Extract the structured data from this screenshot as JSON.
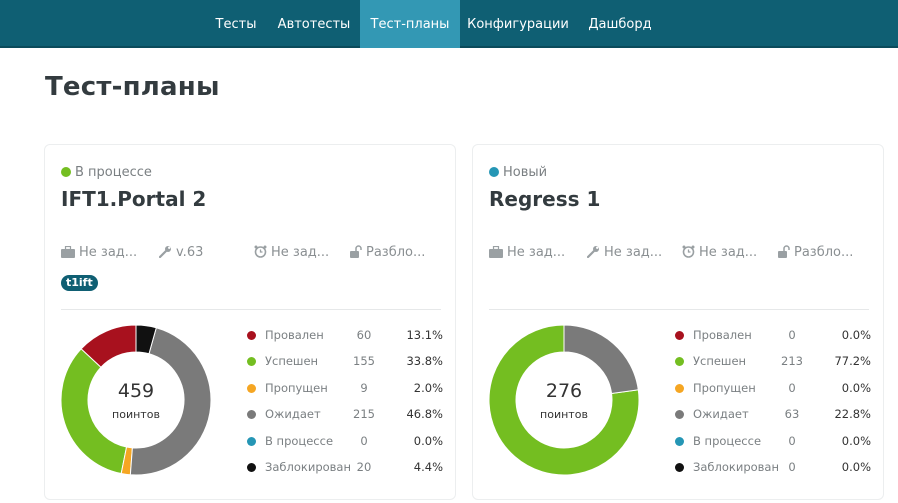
{
  "nav": {
    "items": [
      {
        "label": "Тесты"
      },
      {
        "label": "Автотесты"
      },
      {
        "label": "Тест-планы"
      },
      {
        "label": "Конфигурации"
      },
      {
        "label": "Дашборд"
      }
    ],
    "active_index": 2
  },
  "page": {
    "title": "Тест-планы"
  },
  "colors": {
    "failed": "#a8111e",
    "passed": "#74be21",
    "skipped": "#f5a623",
    "pending": "#7a7a7a",
    "in_progress": "#2596b5",
    "blocked": "#111111"
  },
  "plans": [
    {
      "status": {
        "label": "В процессе",
        "color": "#74be21"
      },
      "name": "IFT1.Portal 2",
      "meta": {
        "date": "Не зад...",
        "build": "v.63",
        "time": "Не зад...",
        "lock": "Разбло..."
      },
      "tag": "t1ift",
      "total": "459",
      "total_unit": "поинтов",
      "stats": [
        {
          "label": "Провален",
          "count": "60",
          "pct": "13.1%",
          "value": 60
        },
        {
          "label": "Успешен",
          "count": "155",
          "pct": "33.8%",
          "value": 155
        },
        {
          "label": "Пропущен",
          "count": "9",
          "pct": "2.0%",
          "value": 9
        },
        {
          "label": "Ожидает",
          "count": "215",
          "pct": "46.8%",
          "value": 215
        },
        {
          "label": "В процессе",
          "count": "0",
          "pct": "0.0%",
          "value": 0
        },
        {
          "label": "Заблокирован",
          "count": "20",
          "pct": "4.4%",
          "value": 20
        }
      ]
    },
    {
      "status": {
        "label": "Новый",
        "color": "#2596b5"
      },
      "name": "Regress 1",
      "meta": {
        "date": "Не зад...",
        "build": "Не зад...",
        "time": "Не зад...",
        "lock": "Разбло..."
      },
      "tag": "",
      "total": "276",
      "total_unit": "поинтов",
      "stats": [
        {
          "label": "Провален",
          "count": "0",
          "pct": "0.0%",
          "value": 0
        },
        {
          "label": "Успешен",
          "count": "213",
          "pct": "77.2%",
          "value": 213
        },
        {
          "label": "Пропущен",
          "count": "0",
          "pct": "0.0%",
          "value": 0
        },
        {
          "label": "Ожидает",
          "count": "63",
          "pct": "22.8%",
          "value": 63
        },
        {
          "label": "В процессе",
          "count": "0",
          "pct": "0.0%",
          "value": 0
        },
        {
          "label": "Заблокирован",
          "count": "0",
          "pct": "0.0%",
          "value": 0
        }
      ]
    }
  ]
}
